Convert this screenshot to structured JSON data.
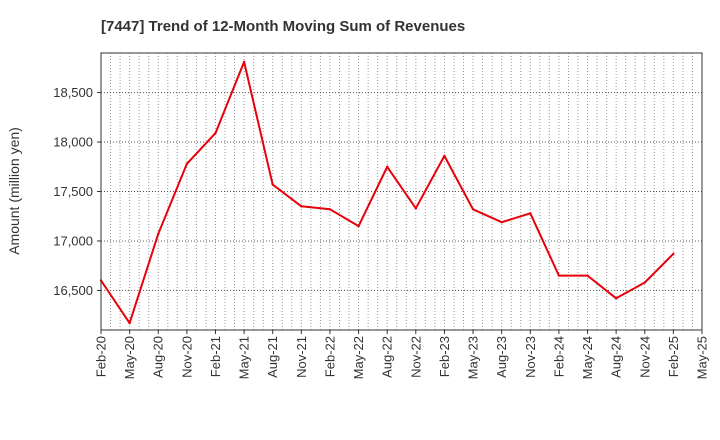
{
  "chart_data": {
    "type": "line",
    "title": "[7447]  Trend of 12-Month Moving Sum of Revenues",
    "ylabel": "Amount (million yen)",
    "xlabel": "",
    "x": [
      "Feb-20",
      "May-20",
      "Aug-20",
      "Nov-20",
      "Feb-21",
      "May-21",
      "Aug-21",
      "Nov-21",
      "Feb-22",
      "May-22",
      "Aug-22",
      "Nov-22",
      "Feb-23",
      "May-23",
      "Aug-23",
      "Nov-23",
      "Feb-24",
      "May-24",
      "Aug-24",
      "Nov-24",
      "Feb-25",
      "May-25"
    ],
    "series": [
      {
        "name": "",
        "values": [
          16600,
          16170,
          17070,
          17780,
          18090,
          18810,
          17570,
          17350,
          17320,
          17150,
          17750,
          17330,
          17860,
          17320,
          17190,
          17280,
          16650,
          16650,
          16420,
          16580,
          16870,
          null
        ]
      }
    ],
    "ylim": [
      16100,
      18900
    ],
    "yticks": [
      16500,
      17000,
      17500,
      18000,
      18500
    ],
    "ytick_labels": [
      "16,500",
      "17,000",
      "17,500",
      "18,000",
      "18,500"
    ],
    "grid": true,
    "line_color": "#e8000b"
  }
}
